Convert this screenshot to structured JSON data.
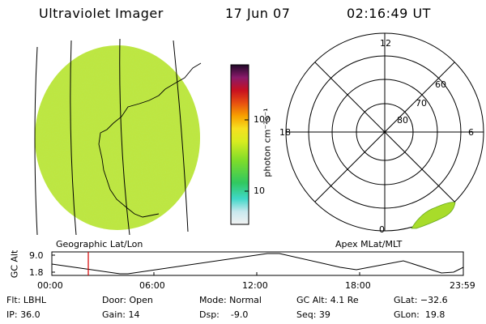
{
  "header": {
    "instrument": "Ultraviolet Imager",
    "date": "17 Jun 07",
    "time": "02:16:49 UT"
  },
  "colorbar": {
    "unit_label": "photon cm⁻²s⁻¹",
    "tick_labels": [
      "100",
      "10"
    ]
  },
  "geo_panel": {
    "caption": "Geographic Lat/Lon"
  },
  "polar_panel": {
    "caption": "Apex MLat/MLT",
    "mlt_labels": {
      "top": "12",
      "left": "18",
      "right": "6",
      "bottom": "0"
    },
    "lat_labels": [
      "60",
      "70",
      "80"
    ]
  },
  "altitude_plot": {
    "ylabel": "GC Alt",
    "y_ticks": [
      "9.0",
      "1.8"
    ],
    "x_ticks": [
      "00:00",
      "06:00",
      "12:00",
      "18:00",
      "23:59"
    ]
  },
  "info": {
    "flt": "Flt: LBHL",
    "ip": "IP: 36.0",
    "door": "Door: Open",
    "gain": "Gain: 14",
    "mode": "Mode: Normal",
    "dsp": "Dsp:    -9.0",
    "gc_alt": "GC Alt: 4.1 Re",
    "seq": "Seq: 39",
    "glat": "GLat: −32.6",
    "glon": "GLon:  19.8"
  }
}
